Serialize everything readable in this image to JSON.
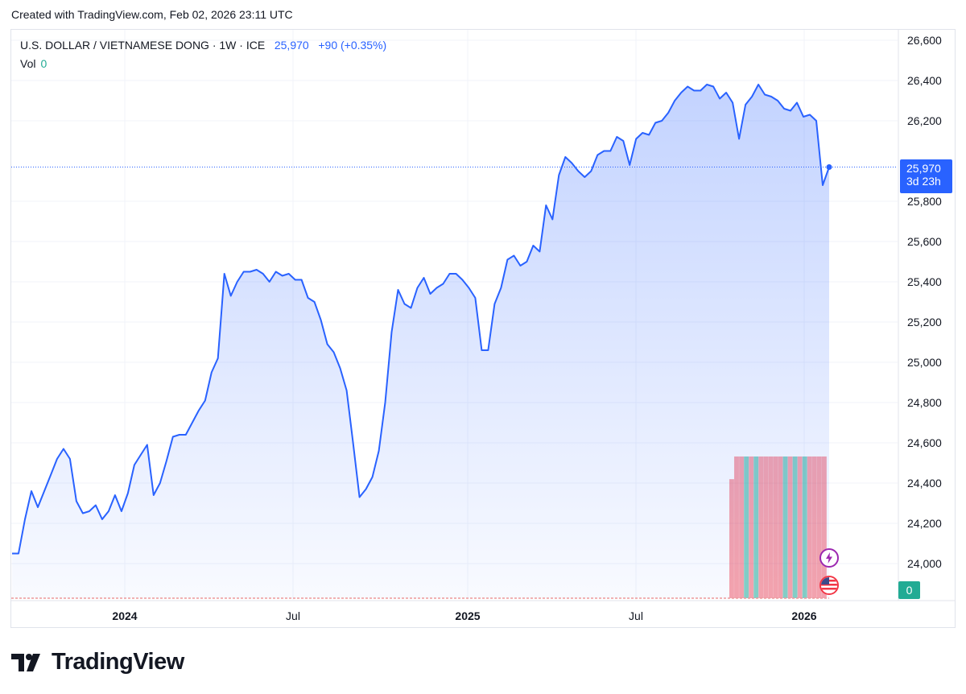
{
  "header": {
    "created_text": "Created with TradingView.com, Feb 02, 2026 23:11 UTC"
  },
  "legend": {
    "symbol": "U.S. DOLLAR / VIETNAMESE DONG",
    "interval": "1W",
    "exchange": "ICE",
    "price": "25,970",
    "change": "+90 (+0.35%)",
    "vol_label": "Vol",
    "vol_value": "0"
  },
  "price_tag": {
    "price": "25,970",
    "countdown": "3d 23h"
  },
  "vol_tag": "0",
  "logo_text": "TradingView",
  "colors": {
    "line": "#2962ff",
    "fill": "#2962ff",
    "vol_up": "#22ab94",
    "vol_down": "#f23645",
    "grid": "#f0f3fa"
  },
  "icons": [
    "lightning-event-icon",
    "us-flag-event-icon"
  ],
  "chart_data": {
    "type": "area",
    "y_axis_ticks": [
      "26,600",
      "26,400",
      "26,200",
      "25,800",
      "25,600",
      "25,400",
      "25,200",
      "25,000",
      "24,800",
      "24,600",
      "24,400",
      "24,200",
      "24,000"
    ],
    "x_axis_labels": [
      "2024",
      "Jul",
      "2025",
      "Jul",
      "2026"
    ],
    "ylim": [
      23830,
      26660
    ],
    "grid": true,
    "last_value": 25970,
    "values": [
      24050,
      24050,
      24220,
      24360,
      24280,
      24360,
      24440,
      24520,
      24570,
      24520,
      24310,
      24250,
      24260,
      24290,
      24220,
      24260,
      24340,
      24260,
      24350,
      24490,
      24540,
      24590,
      24340,
      24400,
      24510,
      24630,
      24640,
      24640,
      24700,
      24760,
      24810,
      24950,
      25020,
      25440,
      25330,
      25400,
      25450,
      25450,
      25460,
      25440,
      25400,
      25450,
      25430,
      25440,
      25410,
      25410,
      25320,
      25300,
      25210,
      25090,
      25050,
      24970,
      24860,
      24600,
      24330,
      24370,
      24430,
      24560,
      24800,
      25150,
      25360,
      25290,
      25270,
      25370,
      25420,
      25340,
      25370,
      25390,
      25440,
      25440,
      25410,
      25370,
      25320,
      25060,
      25060,
      25290,
      25370,
      25510,
      25530,
      25480,
      25500,
      25580,
      25550,
      25780,
      25710,
      25930,
      26020,
      25990,
      25950,
      25920,
      25950,
      26030,
      26050,
      26050,
      26120,
      26100,
      25980,
      26110,
      26140,
      26130,
      26190,
      26200,
      26240,
      26300,
      26340,
      26370,
      26350,
      26350,
      26380,
      26370,
      26310,
      26340,
      26290,
      26110,
      26280,
      26320,
      26380,
      26330,
      26320,
      26300,
      26260,
      26250,
      26290,
      26220,
      26230,
      26200,
      25880,
      25970
    ],
    "volume_values": [
      0.55,
      0.55,
      0.55,
      0.55,
      0.55,
      0.55,
      0.55,
      0.55,
      0.55,
      0.55,
      0.55,
      0.55,
      0.55,
      0.55,
      0.55,
      0.55,
      0.55,
      0.55,
      0.55,
      0.55,
      0.55,
      0.55,
      0.55,
      0.55,
      0.55,
      0.55,
      0.55,
      0.55,
      0.55,
      0.55,
      0.55,
      0.55,
      0.55,
      0.55,
      0.55,
      0.55,
      0.55,
      0.55,
      0.55,
      0.55,
      0.55,
      0.55,
      0.55,
      0.55,
      0.55,
      0.55,
      0.55,
      0.55,
      0.55,
      0.55,
      0.55,
      0.55,
      0.55,
      0.55,
      0.55,
      0.55,
      0.55,
      0.55,
      0.55,
      0.55,
      0.55,
      0.55,
      0.55,
      0.55,
      0.55,
      0.55,
      0.55,
      0.55,
      0.55,
      0.55,
      0.55,
      0.55,
      0.55,
      0.55,
      0.55,
      0.55,
      0.55,
      0.55,
      0.55,
      0.55,
      0.55,
      0.55,
      0.55,
      0.55,
      0.55,
      0.55,
      0.55,
      0.55,
      0.55,
      0.55,
      0.55,
      0.55,
      0.55,
      0.55,
      0.55,
      0.55,
      0.55,
      0.55,
      0.55,
      0.55,
      0.55,
      0.55,
      0.55,
      0.55,
      0.55,
      0.55,
      0.55,
      0.55,
      0.55,
      0.55,
      0.55,
      0.55,
      0.55,
      0.55,
      0.55,
      0.55,
      0.55,
      0.55,
      0.55,
      0.55,
      0.55,
      0.55,
      0.55,
      0.55,
      0.55,
      0.55,
      0.55,
      0.55
    ],
    "volume_bars": [
      {
        "v": 0.84,
        "dir": "down"
      },
      {
        "v": 1.0,
        "dir": "down"
      },
      {
        "v": 1.0,
        "dir": "down"
      },
      {
        "v": 1.0,
        "dir": "up"
      },
      {
        "v": 1.0,
        "dir": "down"
      },
      {
        "v": 1.0,
        "dir": "up"
      },
      {
        "v": 1.0,
        "dir": "down"
      },
      {
        "v": 1.0,
        "dir": "down"
      },
      {
        "v": 1.0,
        "dir": "down"
      },
      {
        "v": 1.0,
        "dir": "down"
      },
      {
        "v": 1.0,
        "dir": "down"
      },
      {
        "v": 1.0,
        "dir": "up"
      },
      {
        "v": 1.0,
        "dir": "down"
      },
      {
        "v": 1.0,
        "dir": "up"
      },
      {
        "v": 1.0,
        "dir": "down"
      },
      {
        "v": 1.0,
        "dir": "up"
      },
      {
        "v": 1.0,
        "dir": "down"
      },
      {
        "v": 1.0,
        "dir": "down"
      },
      {
        "v": 1.0,
        "dir": "down"
      },
      {
        "v": 1.0,
        "dir": "down"
      }
    ]
  }
}
